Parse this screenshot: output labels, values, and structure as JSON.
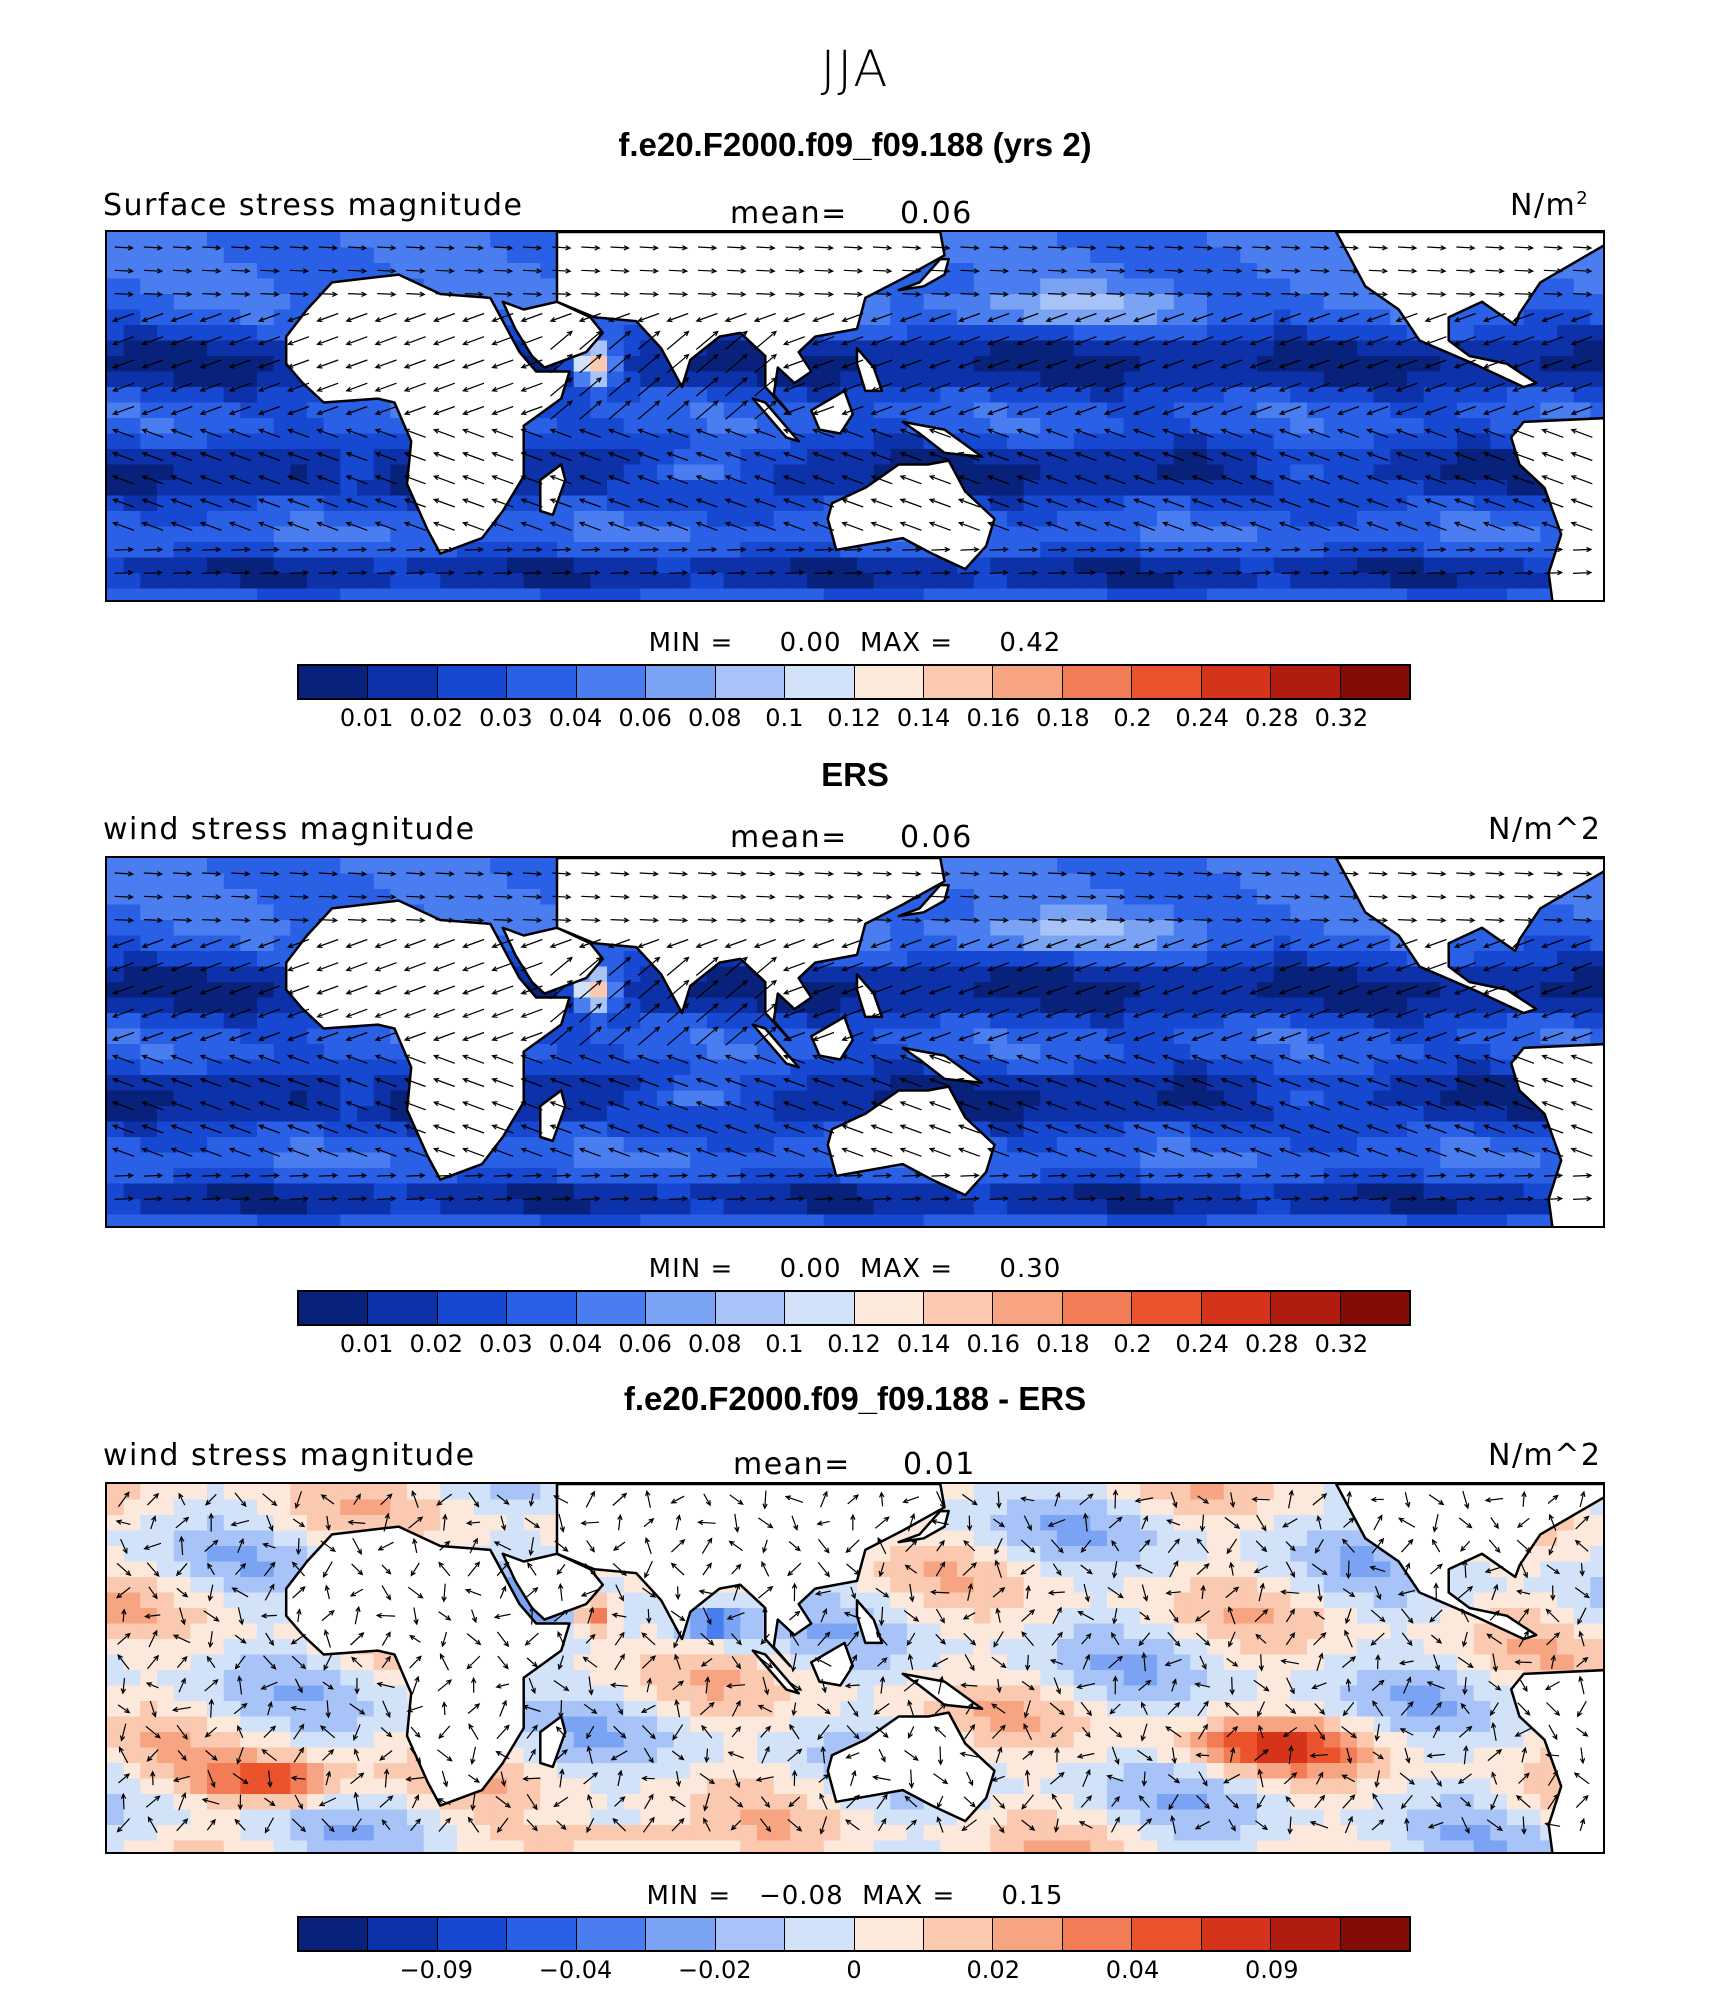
{
  "season": "JJA",
  "colors": [
    "#08217a",
    "#0d31a8",
    "#1648d1",
    "#2a60e6",
    "#4a7ef0",
    "#7ba3f4",
    "#a8c3f7",
    "#d2e2f9",
    "#fde8dc",
    "#fbc9b0",
    "#f7a482",
    "#f27c55",
    "#ea532b",
    "#d6341a",
    "#b01c0f",
    "#840c06"
  ],
  "panels": [
    {
      "title": "f.e20.F2000.f09_f09.188 (yrs 2)",
      "left_label": "Surface stress magnitude",
      "mean_label": "mean=",
      "mean_value": "0.06",
      "units": "N/m",
      "units_sup": "2",
      "minmax": "MIN =     0.00  MAX =     0.42",
      "ticks": [
        "0.01",
        "0.02",
        "0.03",
        "0.04",
        "0.06",
        "0.08",
        "0.1",
        "0.12",
        "0.14",
        "0.16",
        "0.18",
        "0.2",
        "0.24",
        "0.28",
        "0.32"
      ]
    },
    {
      "title": "ERS",
      "left_label": "wind stress magnitude",
      "mean_label": "mean=",
      "mean_value": "0.06",
      "units": "N/m^2",
      "minmax": "MIN =     0.00  MAX =     0.30",
      "ticks": [
        "0.01",
        "0.02",
        "0.03",
        "0.04",
        "0.06",
        "0.08",
        "0.1",
        "0.12",
        "0.14",
        "0.16",
        "0.18",
        "0.2",
        "0.24",
        "0.28",
        "0.32"
      ]
    },
    {
      "title": "f.e20.F2000.f09_f09.188 - ERS",
      "left_label": "wind stress magnitude",
      "mean_label": "mean=",
      "mean_value": "0.01",
      "units": "N/m^2",
      "minmax": "MIN =   −0.08  MAX =     0.15",
      "ticks": [
        "−0.09",
        "−0.04",
        "−0.02",
        "0",
        "0.02",
        "0.04",
        "0.09"
      ]
    }
  ],
  "chart_data": [
    {
      "type": "heatmap",
      "title": "f.e20.F2000.f09_f09.188 (yrs 2)",
      "variable": "Surface stress magnitude",
      "units": "N/m2",
      "mean": 0.06,
      "min": 0.0,
      "max": 0.42,
      "levels": [
        0.01,
        0.02,
        0.03,
        0.04,
        0.06,
        0.08,
        0.1,
        0.12,
        0.14,
        0.16,
        0.18,
        0.2,
        0.24,
        0.28,
        0.32
      ],
      "overlay": "wind stress vectors"
    },
    {
      "type": "heatmap",
      "title": "ERS",
      "variable": "wind stress magnitude",
      "units": "N/m^2",
      "mean": 0.06,
      "min": 0.0,
      "max": 0.3,
      "levels": [
        0.01,
        0.02,
        0.03,
        0.04,
        0.06,
        0.08,
        0.1,
        0.12,
        0.14,
        0.16,
        0.18,
        0.2,
        0.24,
        0.28,
        0.32
      ],
      "overlay": "wind stress vectors"
    },
    {
      "type": "heatmap",
      "title": "f.e20.F2000.f09_f09.188 - ERS",
      "variable": "wind stress magnitude",
      "units": "N/m^2",
      "mean": 0.01,
      "min": -0.08,
      "max": 0.15,
      "levels": [
        -0.09,
        -0.04,
        -0.02,
        0,
        0.02,
        0.04,
        0.09
      ],
      "overlay": "wind stress difference vectors"
    }
  ]
}
